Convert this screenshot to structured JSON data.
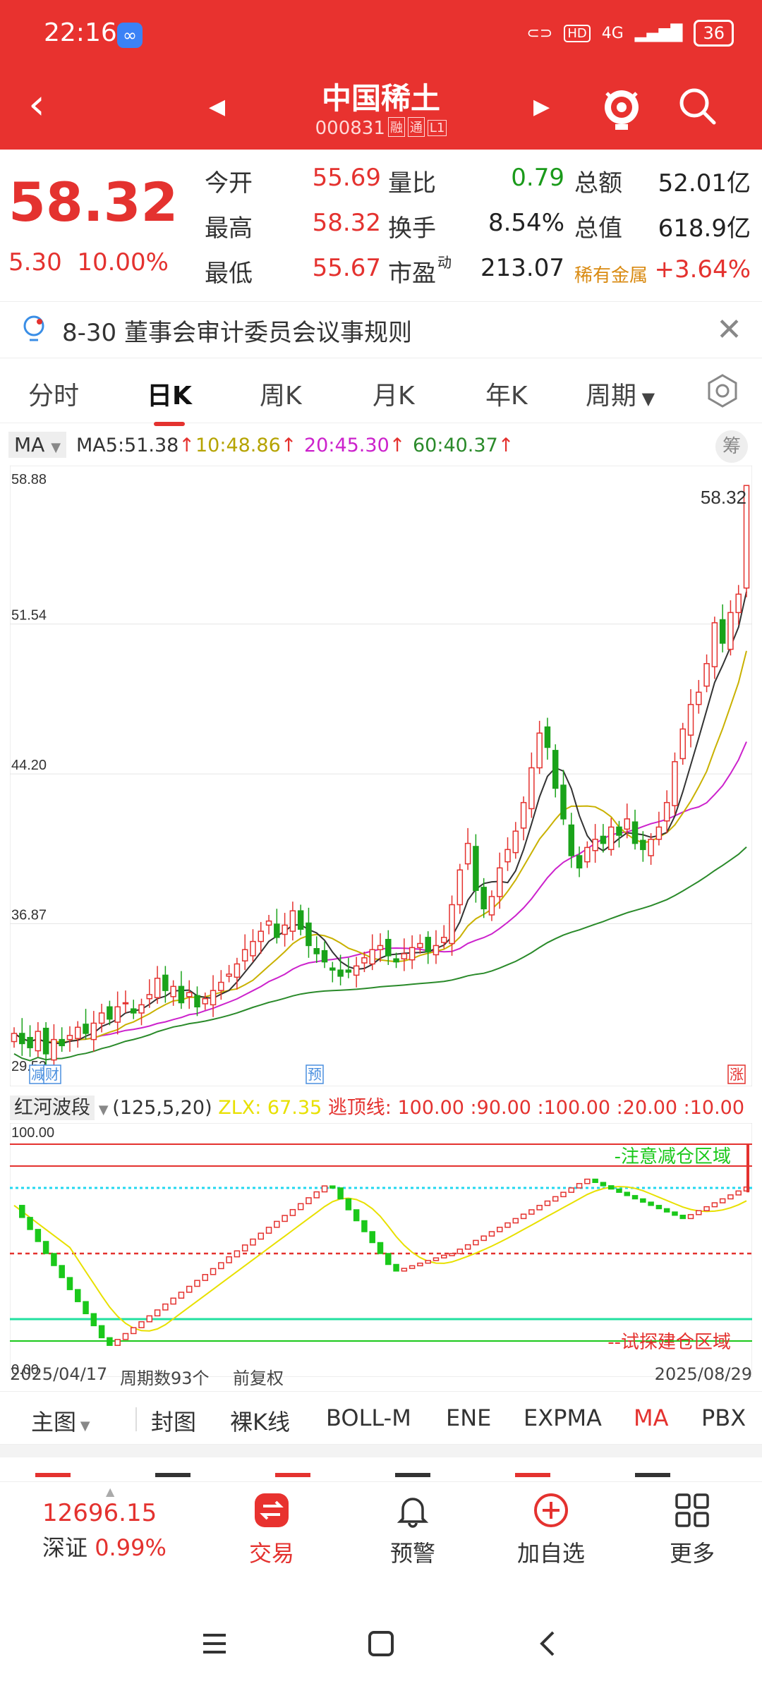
{
  "status_bar": {
    "time": "22:16",
    "network": "4G",
    "hd": "HD",
    "battery": "36"
  },
  "header": {
    "name": "中国稀土",
    "code": "000831",
    "tags": [
      "融",
      "通",
      "L1"
    ]
  },
  "quote": {
    "price": "58.32",
    "change": "5.30",
    "change_pct": "10.00%",
    "stats": [
      {
        "label": "今开",
        "value": "55.69",
        "color": "red"
      },
      {
        "label": "最高",
        "value": "58.32",
        "color": "red"
      },
      {
        "label": "最低",
        "value": "55.67",
        "color": "red"
      },
      {
        "label": "量比",
        "value": "0.79",
        "color": "green"
      },
      {
        "label": "换手",
        "value": "8.54%",
        "color": "dark"
      },
      {
        "label": "市盈",
        "value": "213.07",
        "color": "dark",
        "sup": "动"
      },
      {
        "label": "总额",
        "value": "52.01亿",
        "color": "dark"
      },
      {
        "label": "总值",
        "value": "618.9亿",
        "color": "dark"
      }
    ],
    "sector": "稀有金属",
    "sector_change": "+3.64%"
  },
  "notice": "8-30 董事会审计委员会议事规则",
  "tabs": [
    "分时",
    "日K",
    "周K",
    "月K",
    "年K",
    "周期"
  ],
  "ma_legend": {
    "selector": "MA",
    "items": [
      {
        "text": "MA5:51.38",
        "color": "#333333"
      },
      {
        "text": "10:48.86",
        "color": "#b5a300"
      },
      {
        "text": "20:45.30",
        "color": "#cc22cc"
      },
      {
        "text": "60:40.37",
        "color": "#2a8a2a"
      }
    ],
    "chou": "筹"
  },
  "chart_data": {
    "type": "candlestick",
    "y_axis_labels": [
      "58.88",
      "51.54",
      "44.20",
      "36.87",
      "29.53"
    ],
    "ylim": [
      29.53,
      58.88
    ],
    "last_price_label": "58.32",
    "markers": [
      "减",
      "财",
      "预",
      "涨"
    ],
    "date_start": "2025/04/17",
    "date_end": "2025/08/29",
    "ma_colors": {
      "ma5": "#333333",
      "ma10": "#c9b100",
      "ma20": "#cc22cc",
      "ma60": "#2a8a2a"
    }
  },
  "indicator": {
    "name": "红河波段",
    "params": "(125,5,20)",
    "zlx": "ZLX: 67.35",
    "levels": "逃顶线: 100.00 :90.00 :100.00 :20.00 :10.00",
    "top_label": "100.00",
    "bottom_label": "0.00",
    "zone_top": "-注意减仓区域",
    "zone_bottom": "--试探建仓区域"
  },
  "footer_info": {
    "start": "2025/04/17",
    "period": "周期数93个",
    "adjust": "前复权",
    "end": "2025/08/29"
  },
  "indicator_bar": [
    "主图",
    "封图",
    "裸K线",
    "BOLL-M",
    "ENE",
    "EXPMA",
    "MA",
    "PBX"
  ],
  "bottom_nav": {
    "index_value": "12696.15",
    "index_name": "深证",
    "index_change": "0.99%",
    "items": [
      "交易",
      "预警",
      "加自选",
      "更多"
    ]
  }
}
